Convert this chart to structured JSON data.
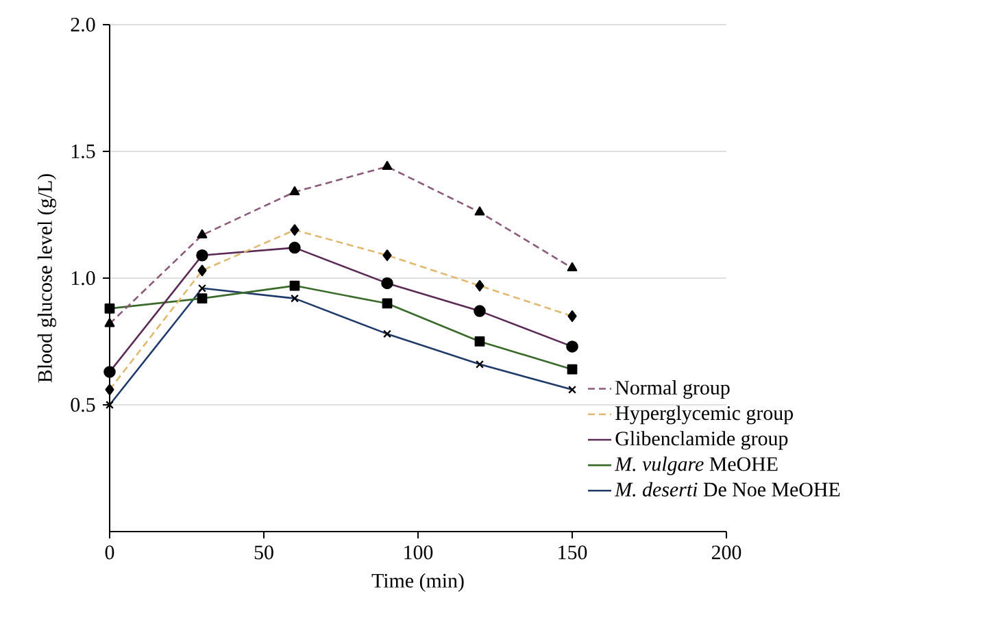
{
  "chart_data": {
    "type": "line",
    "xlabel": "Time (min)",
    "ylabel": "Blood glucose level (g/L)",
    "x": [
      0,
      30,
      60,
      90,
      120,
      150
    ],
    "xlim": [
      0,
      200
    ],
    "xticks": [
      0,
      50,
      100,
      150,
      200
    ],
    "ylim": [
      0,
      2.0
    ],
    "yticks": [
      {
        "value": 0.5,
        "label": "0.5"
      },
      {
        "value": 1.0,
        "label": "1.0"
      },
      {
        "value": 1.5,
        "label": "1.5"
      },
      {
        "value": 2.0,
        "label": "2.0"
      }
    ],
    "grid": "y",
    "legend": "bottom right",
    "series": [
      {
        "name": "Normal group",
        "color": "#8b5a7a",
        "line_style": "dashed",
        "marker": "triangle",
        "values": [
          0.82,
          1.17,
          1.34,
          1.44,
          1.26,
          1.04
        ]
      },
      {
        "name": "Hyperglycemic group",
        "color": "#e0b870",
        "line_style": "dashed",
        "marker": "diamond",
        "values": [
          0.56,
          1.03,
          1.19,
          1.09,
          0.97,
          0.85
        ]
      },
      {
        "name": "Glibenclamide group",
        "color": "#5a2a55",
        "line_style": "solid",
        "marker": "circle",
        "values": [
          0.63,
          1.09,
          1.12,
          0.98,
          0.87,
          0.73
        ]
      },
      {
        "name": "*M. vulgare* MeOHE",
        "color": "#3a6a2a",
        "line_style": "solid",
        "marker": "square",
        "values": [
          0.88,
          0.92,
          0.97,
          0.9,
          0.75,
          0.64
        ]
      },
      {
        "name": "*M. deserti* De Noe MeOHE",
        "color": "#1f3a6a",
        "line_style": "solid",
        "marker": "cross",
        "values": [
          0.5,
          0.96,
          0.92,
          0.78,
          0.66,
          0.56
        ]
      }
    ]
  }
}
